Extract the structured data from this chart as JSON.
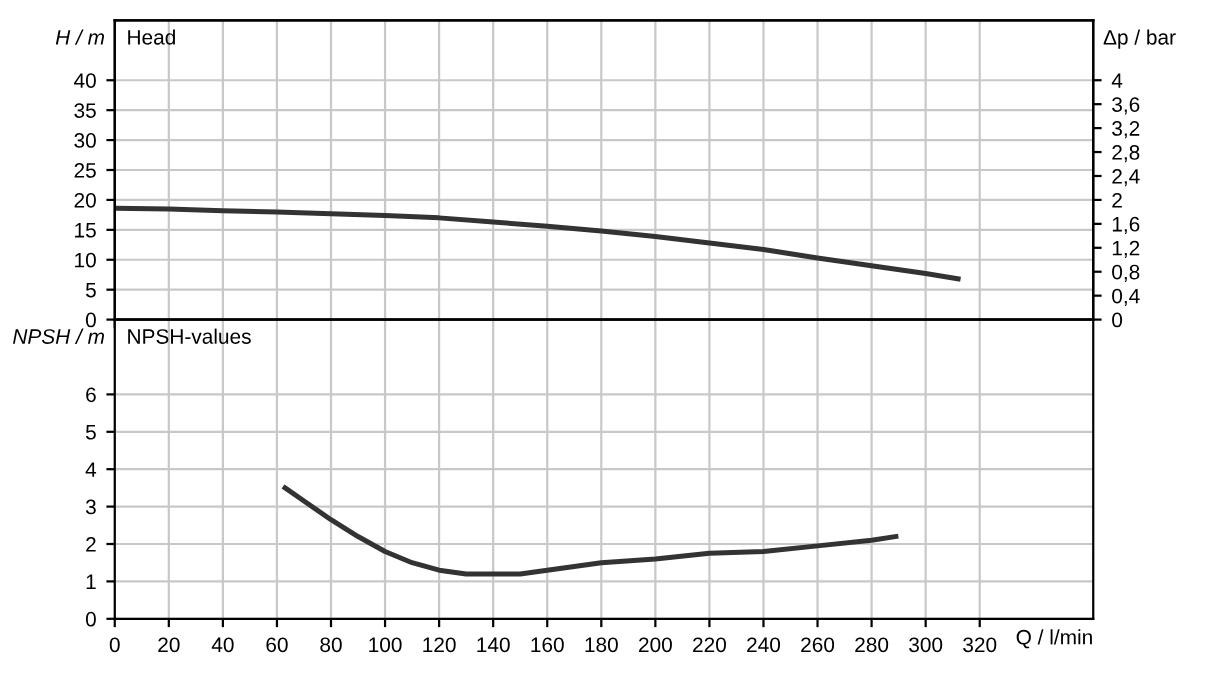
{
  "chart_data": [
    {
      "type": "line",
      "title": "Head",
      "ylabel": "H / m",
      "y2label": "Δp / bar",
      "x": [
        0,
        20,
        40,
        60,
        80,
        100,
        120,
        140,
        160,
        180,
        200,
        220,
        240,
        260,
        280,
        300,
        312
      ],
      "series": [
        {
          "color": "#333333",
          "values": [
            18.6,
            18.5,
            18.2,
            18.0,
            17.7,
            17.4,
            17.0,
            16.3,
            15.6,
            14.8,
            13.9,
            12.8,
            11.7,
            10.3,
            9.0,
            7.7,
            6.8
          ]
        }
      ],
      "xlim": [
        0,
        362
      ],
      "xticks": [
        0,
        20,
        40,
        60,
        80,
        100,
        120,
        140,
        160,
        180,
        200,
        220,
        240,
        260,
        280,
        300,
        320
      ],
      "ylim": [
        0,
        50
      ],
      "yticks": [
        0,
        5,
        10,
        15,
        20,
        25,
        30,
        35,
        40
      ],
      "y2lim": [
        0,
        5
      ],
      "y2ticks": [
        0,
        {
          "value": 0.4,
          "label": "0,4"
        },
        {
          "value": 0.8,
          "label": "0,8"
        },
        {
          "value": 1.2,
          "label": "1,2"
        },
        {
          "value": 1.6,
          "label": "1,6"
        },
        2,
        {
          "value": 2.4,
          "label": "2,4"
        },
        {
          "value": 2.8,
          "label": "2,8"
        },
        {
          "value": 3.2,
          "label": "3,2"
        },
        {
          "value": 3.6,
          "label": "3,6"
        },
        4
      ],
      "grid": true,
      "tick_labels": "y"
    },
    {
      "type": "line",
      "title": "NPSH-values",
      "ylabel": "NPSH / m",
      "xlabel": "Q / l/min",
      "x": [
        63,
        70,
        80,
        90,
        100,
        110,
        120,
        130,
        140,
        150,
        160,
        180,
        200,
        220,
        240,
        260,
        280,
        289
      ],
      "series": [
        {
          "color": "#333333",
          "values": [
            3.5,
            3.15,
            2.65,
            2.2,
            1.8,
            1.5,
            1.3,
            1.2,
            1.2,
            1.2,
            1.3,
            1.5,
            1.6,
            1.75,
            1.8,
            1.95,
            2.1,
            2.2
          ]
        }
      ],
      "xlim": [
        0,
        362
      ],
      "xticks": [
        0,
        20,
        40,
        60,
        80,
        100,
        120,
        140,
        160,
        180,
        200,
        220,
        240,
        260,
        280,
        300,
        320
      ],
      "ylim": [
        0,
        8
      ],
      "yticks": [
        0,
        1,
        2,
        3,
        4,
        5,
        6
      ],
      "grid": true
    }
  ]
}
